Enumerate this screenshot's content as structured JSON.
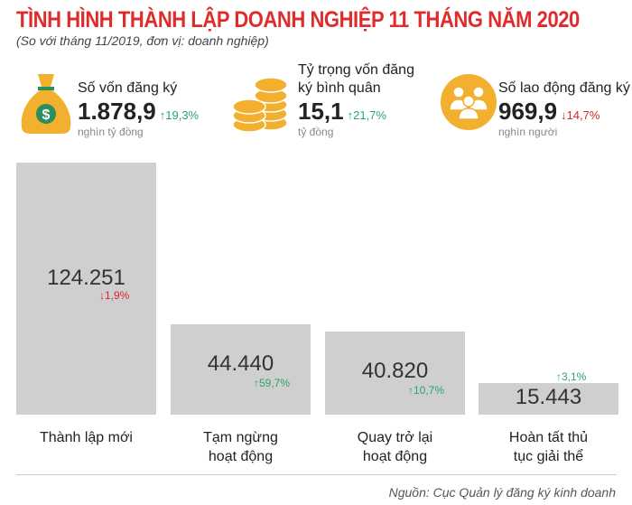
{
  "header": {
    "title": "TÌNH HÌNH THÀNH LẬP DOANH NGHIỆP 11 THÁNG  NĂM 2020",
    "subtitle": "(So với tháng 11/2019, đơn vị: doanh nghiệp)"
  },
  "stats": [
    {
      "label": "Số vốn đăng ký",
      "value": "1.878,9",
      "change": "↑19,3%",
      "direction": "up",
      "unit": "nghìn tỷ đồng",
      "icon": "money-bag-icon"
    },
    {
      "label": "Tỷ trọng vốn đăng ký bình quân",
      "value": "15,1",
      "change": "↑21,7%",
      "direction": "up",
      "unit": "tỷ đồng",
      "icon": "coins-icon"
    },
    {
      "label": "Số lao động đăng ký",
      "value": "969,9",
      "change": "↓14,7%",
      "direction": "down",
      "unit": "nghìn người",
      "icon": "people-icon"
    }
  ],
  "colors": {
    "title": "#e02b2b",
    "up": "#2aa56a",
    "down": "#d9262b",
    "bar": "#cfcfcf",
    "icon": "#f2b02e"
  },
  "chart_data": {
    "type": "bar",
    "categories": [
      "Thành lập mới",
      "Tạm ngừng hoạt động",
      "Quay trở lại hoạt động",
      "Hoàn tất thủ tục giải thể"
    ],
    "values": [
      124251,
      44440,
      40820,
      15443
    ],
    "value_labels": [
      "124.251",
      "44.440",
      "40.820",
      "15.443"
    ],
    "changes": [
      "↓1,9%",
      "↑59,7%",
      "↑10,7%",
      "↑3,1%"
    ],
    "change_directions": [
      "down",
      "up",
      "up",
      "up"
    ],
    "grid": false
  },
  "source": "Nguồn: Cục Quản lý đăng ký kinh doanh"
}
